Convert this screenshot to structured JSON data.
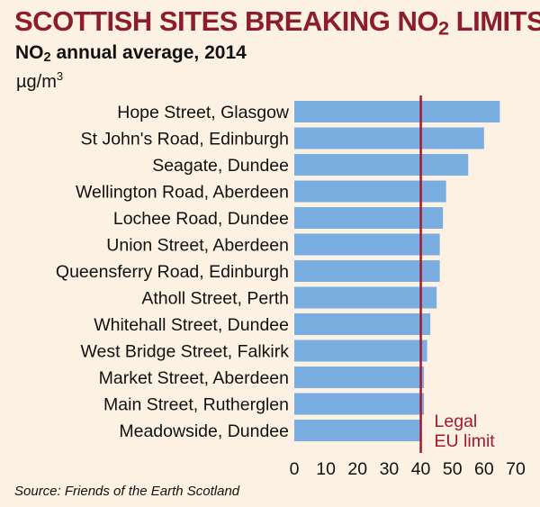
{
  "header": {
    "title_main": "SCOTTISH SITES BREAKING NO",
    "title_sub": "2",
    "title_end": " LIMITS",
    "subtitle_main": "NO",
    "subtitle_sub": "2",
    "subtitle_end": " annual average, 2014",
    "unit_main": "µg/m",
    "unit_sup": "3"
  },
  "source": "Source: Friends of the Earth Scotland",
  "colors": {
    "bar": "#7aaee0",
    "limit_line": "#a5192e",
    "background": "#fdf1e3",
    "title": "#8c1d2c"
  },
  "chart_data": {
    "type": "bar",
    "orientation": "horizontal",
    "categories": [
      "Hope Street, Glasgow",
      "St John's Road, Edinburgh",
      "Seagate, Dundee",
      "Wellington Road, Aberdeen",
      "Lochee Road, Dundee",
      "Union Street, Aberdeen",
      "Queensferry Road, Edinburgh",
      "Atholl Street, Perth",
      "Whitehall Street, Dundee",
      "West Bridge Street, Falkirk",
      "Market Street, Aberdeen",
      "Main Street, Rutherglen",
      "Meadowside, Dundee"
    ],
    "values": [
      65,
      60,
      55,
      48,
      47,
      46,
      46,
      45,
      43,
      42,
      41,
      41,
      40
    ],
    "xlim": [
      0,
      70
    ],
    "xticks": [
      0,
      10,
      20,
      30,
      40,
      50,
      60,
      70
    ],
    "reference_line": {
      "value": 40,
      "label_lines": [
        "Legal",
        "EU limit"
      ]
    },
    "grid": false,
    "legend": "none"
  }
}
